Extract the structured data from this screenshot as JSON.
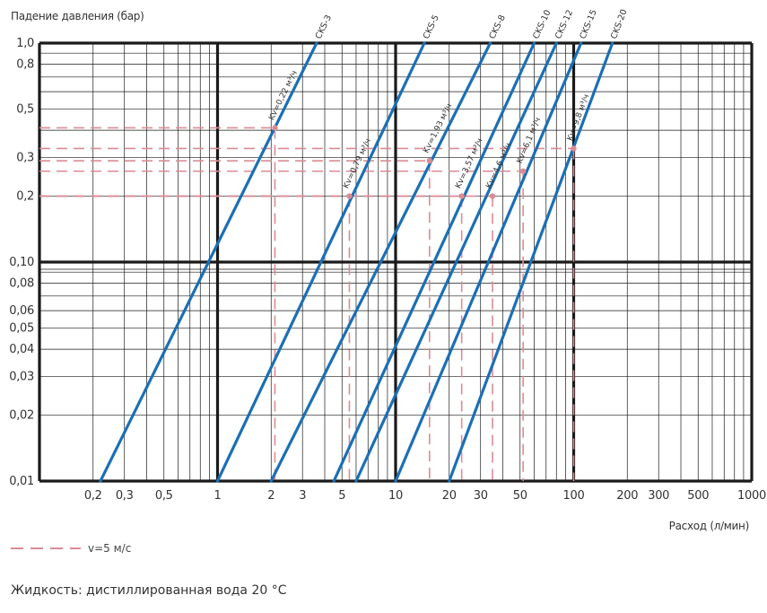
{
  "chart_data": {
    "type": "line",
    "x_scale": "log",
    "y_scale": "log",
    "xlim": [
      0.1,
      1000
    ],
    "ylim": [
      0.01,
      1.0
    ],
    "title": "",
    "ylabel": "Падение давления (бар)",
    "xlabel": "Расход (л/мин)",
    "x_ticks": [
      {
        "v": 0.2,
        "label": "0,2"
      },
      {
        "v": 0.3,
        "label": "0,3"
      },
      {
        "v": 0.5,
        "label": "0,5"
      },
      {
        "v": 1,
        "label": "1"
      },
      {
        "v": 2,
        "label": "2"
      },
      {
        "v": 3,
        "label": "3"
      },
      {
        "v": 5,
        "label": "5"
      },
      {
        "v": 10,
        "label": "10"
      },
      {
        "v": 20,
        "label": "20"
      },
      {
        "v": 30,
        "label": "30"
      },
      {
        "v": 50,
        "label": "50"
      },
      {
        "v": 100,
        "label": "100"
      },
      {
        "v": 200,
        "label": "200"
      },
      {
        "v": 300,
        "label": "300"
      },
      {
        "v": 500,
        "label": "500"
      },
      {
        "v": 1000,
        "label": "1000"
      }
    ],
    "y_ticks": [
      {
        "v": 0.01,
        "label": "0,01"
      },
      {
        "v": 0.02,
        "label": "0,02"
      },
      {
        "v": 0.03,
        "label": "0,03"
      },
      {
        "v": 0.04,
        "label": "0,04"
      },
      {
        "v": 0.05,
        "label": "0,05"
      },
      {
        "v": 0.06,
        "label": "0,06"
      },
      {
        "v": 0.08,
        "label": "0,08"
      },
      {
        "v": 0.1,
        "label": "0,10"
      },
      {
        "v": 0.2,
        "label": "0,2"
      },
      {
        "v": 0.3,
        "label": "0,3"
      },
      {
        "v": 0.5,
        "label": "0,5"
      },
      {
        "v": 0.8,
        "label": "0,8"
      },
      {
        "v": 1.0,
        "label": "1,0"
      }
    ],
    "series": [
      {
        "name": "CKS-3",
        "kv_label": "Kv=0,22 м³/ч",
        "x": [
          0.22,
          3.6
        ],
        "y": [
          0.01,
          1.0
        ],
        "marker": {
          "x": 2.1,
          "y": 0.41
        }
      },
      {
        "name": "CKS-5",
        "kv_label": "Kv=0,79 м³/ч",
        "x": [
          1.0,
          14.5
        ],
        "y": [
          0.01,
          1.0
        ],
        "marker": {
          "x": 5.5,
          "y": 0.2
        }
      },
      {
        "name": "CKS-8",
        "kv_label": "Kv=1,93 м³/ч",
        "x": [
          2.0,
          34.0
        ],
        "y": [
          0.01,
          1.0
        ],
        "marker": {
          "x": 15.5,
          "y": 0.29
        }
      },
      {
        "name": "CKS-10",
        "kv_label": "Kv=3,57 м³/ч",
        "x": [
          4.5,
          60.0
        ],
        "y": [
          0.01,
          1.0
        ],
        "marker": {
          "x": 23.5,
          "y": 0.2
        }
      },
      {
        "name": "CKS-12",
        "kv_label": "Kv=4,6 м³/ч",
        "x": [
          6.0,
          80.0
        ],
        "y": [
          0.01,
          1.0
        ],
        "marker": {
          "x": 35.0,
          "y": 0.2
        }
      },
      {
        "name": "CKS-15",
        "kv_label": "Kv=6,1 м³/ч",
        "x": [
          10.0,
          110.0
        ],
        "y": [
          0.01,
          1.0
        ],
        "marker": {
          "x": 52.0,
          "y": 0.26
        }
      },
      {
        "name": "CKS-20",
        "kv_label": "Kv=9,8 м³/ч",
        "x": [
          20.0,
          165.0
        ],
        "y": [
          0.01,
          1.0
        ],
        "marker": {
          "x": 100.0,
          "y": 0.33
        }
      }
    ],
    "legend": {
      "label": "v=5 м/с",
      "style": "dashed",
      "color": "#d98c95"
    },
    "grid": true,
    "colors": {
      "line": "#1b6fb5",
      "guide": "#d98c95",
      "grid": "#1a1a1a"
    }
  },
  "footnote": "Жидкость: дистиллированная вода 20 °C"
}
